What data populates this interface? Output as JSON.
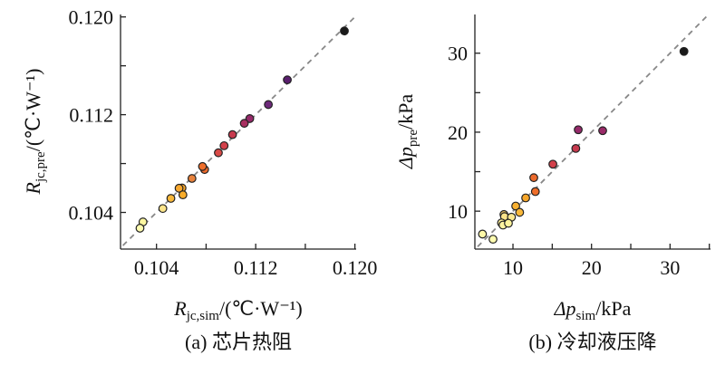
{
  "chart_data": [
    {
      "type": "scatter",
      "panel": "a",
      "caption": "(a) 芯片热阻",
      "xlabel": {
        "main": "R",
        "sub": "jc,sim",
        "unit": "/(℃·W⁻¹)"
      },
      "ylabel": {
        "main": "R",
        "sub": "jc,pre",
        "unit": "/(℃·W⁻¹)"
      },
      "xlim": [
        0.1011,
        0.1201
      ],
      "ylim": [
        0.101,
        0.1202
      ],
      "xticks": [
        0.104,
        0.108,
        0.112,
        0.116,
        0.12
      ],
      "xtick_labels": [
        "0.104",
        "",
        "0.112",
        "",
        "0.120"
      ],
      "yticks": [
        0.104,
        0.108,
        0.112,
        0.116,
        0.12
      ],
      "ytick_labels": [
        "0.104",
        "",
        "0.112",
        "",
        "0.120"
      ],
      "reference_line": "y = x (dashed)",
      "points": [
        {
          "x": 0.11915,
          "y": 0.11885,
          "color": "#1a1a1a"
        },
        {
          "x": 0.11455,
          "y": 0.11485,
          "color": "#5a1f6e"
        },
        {
          "x": 0.11302,
          "y": 0.11283,
          "color": "#6e2a7a"
        },
        {
          "x": 0.11152,
          "y": 0.11168,
          "color": "#962a6a"
        },
        {
          "x": 0.11108,
          "y": 0.11129,
          "color": "#a82f60"
        },
        {
          "x": 0.11013,
          "y": 0.11037,
          "color": "#c73a4e"
        },
        {
          "x": 0.10945,
          "y": 0.10946,
          "color": "#d2404a"
        },
        {
          "x": 0.10899,
          "y": 0.10888,
          "color": "#d94a47"
        },
        {
          "x": 0.10788,
          "y": 0.10751,
          "color": "#ec6a2c"
        },
        {
          "x": 0.10771,
          "y": 0.10776,
          "color": "#ee6e2a"
        },
        {
          "x": 0.10686,
          "y": 0.10678,
          "color": "#e8823c"
        },
        {
          "x": 0.10606,
          "y": 0.106,
          "color": "#f6a62a"
        },
        {
          "x": 0.10582,
          "y": 0.10598,
          "color": "#f7a830"
        },
        {
          "x": 0.10613,
          "y": 0.10544,
          "color": "#f8ac2a"
        },
        {
          "x": 0.10516,
          "y": 0.10515,
          "color": "#f9b83a"
        },
        {
          "x": 0.10451,
          "y": 0.10432,
          "color": "#fbe48a"
        },
        {
          "x": 0.10291,
          "y": 0.10322,
          "color": "#fdf7a0"
        },
        {
          "x": 0.10267,
          "y": 0.10271,
          "color": "#fefcb0"
        }
      ]
    },
    {
      "type": "scatter",
      "panel": "b",
      "caption": "(b) 冷却液压降",
      "xlabel": {
        "main": "Δp",
        "sub": "sim",
        "unit": "/kPa"
      },
      "ylabel": {
        "main": "Δp",
        "sub": "pre",
        "unit": "/kPa"
      },
      "xlim": [
        5.15,
        35.15
      ],
      "ylim": [
        5.2,
        34.9
      ],
      "xticks": [
        10,
        15,
        20,
        25,
        30,
        35
      ],
      "xtick_labels": [
        "10",
        "",
        "20",
        "",
        "30",
        ""
      ],
      "yticks": [
        10,
        15,
        20,
        25,
        30
      ],
      "ytick_labels": [
        "10",
        "",
        "20",
        "",
        "30"
      ],
      "reference_line": "y = x (dashed)",
      "points": [
        {
          "x": 31.77,
          "y": 30.23,
          "color": "#1a1a1a"
        },
        {
          "x": 18.31,
          "y": 20.31,
          "color": "#962a6a"
        },
        {
          "x": 21.42,
          "y": 20.19,
          "color": "#9a2a68"
        },
        {
          "x": 18.0,
          "y": 17.94,
          "color": "#c73a4e"
        },
        {
          "x": 15.08,
          "y": 15.95,
          "color": "#d2404a"
        },
        {
          "x": 12.65,
          "y": 14.24,
          "color": "#ec6a2c"
        },
        {
          "x": 12.85,
          "y": 12.48,
          "color": "#ee6e2a"
        },
        {
          "x": 11.62,
          "y": 11.68,
          "color": "#f6a62a"
        },
        {
          "x": 10.35,
          "y": 10.65,
          "color": "#f8b030"
        },
        {
          "x": 10.85,
          "y": 9.85,
          "color": "#f9b83a"
        },
        {
          "x": 8.85,
          "y": 9.58,
          "color": "#e8c060"
        },
        {
          "x": 8.92,
          "y": 9.31,
          "color": "#fbe48a"
        },
        {
          "x": 9.81,
          "y": 9.24,
          "color": "#fbe890"
        },
        {
          "x": 8.54,
          "y": 8.51,
          "color": "#fcf09a"
        },
        {
          "x": 8.73,
          "y": 8.24,
          "color": "#fdf4a0"
        },
        {
          "x": 9.42,
          "y": 8.47,
          "color": "#fdf49c"
        },
        {
          "x": 6.12,
          "y": 7.1,
          "color": "#fef8a8"
        },
        {
          "x": 7.46,
          "y": 6.45,
          "color": "#fefcb0"
        }
      ]
    }
  ]
}
